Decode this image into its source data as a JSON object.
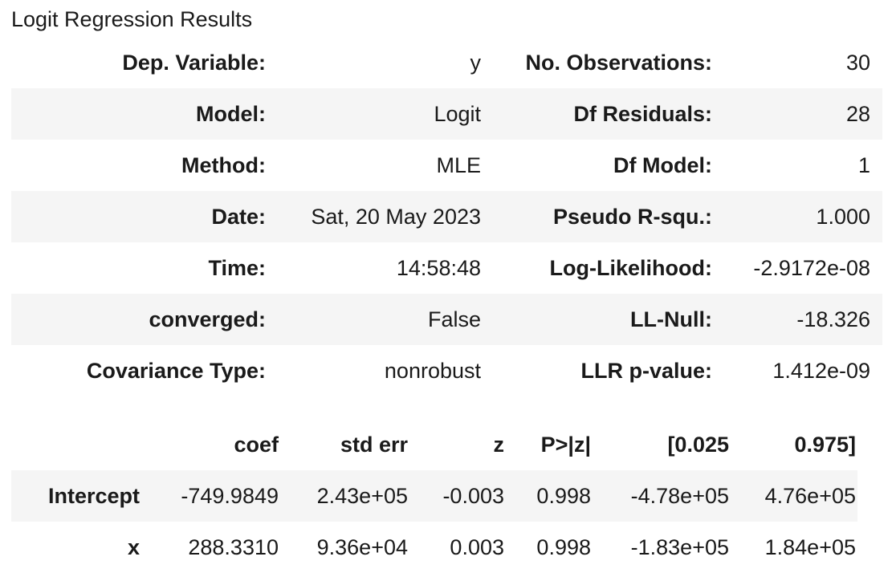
{
  "caption": "Logit Regression Results",
  "summary": [
    {
      "k1": "Dep. Variable:",
      "v1": "y",
      "k2": "No. Observations:",
      "v2": "30"
    },
    {
      "k1": "Model:",
      "v1": "Logit",
      "k2": "Df Residuals:",
      "v2": "28"
    },
    {
      "k1": "Method:",
      "v1": "MLE",
      "k2": "Df Model:",
      "v2": "1"
    },
    {
      "k1": "Date:",
      "v1": "Sat, 20 May 2023",
      "k2": "Pseudo R-squ.:",
      "v2": "1.000"
    },
    {
      "k1": "Time:",
      "v1": "14:58:48",
      "k2": "Log-Likelihood:",
      "v2": "-2.9172e-08"
    },
    {
      "k1": "converged:",
      "v1": "False",
      "k2": "LL-Null:",
      "v2": "-18.326"
    },
    {
      "k1": "Covariance Type:",
      "v1": "nonrobust",
      "k2": "LLR p-value:",
      "v2": "1.412e-09"
    }
  ],
  "coef_table": {
    "headers": [
      "",
      "coef",
      "std err",
      "z",
      "P>|z|",
      "[0.025",
      "0.975]"
    ],
    "rows": [
      [
        "Intercept",
        "-749.9849",
        "2.43e+05",
        "-0.003",
        "0.998",
        "-4.78e+05",
        "4.76e+05"
      ],
      [
        "x",
        "288.3310",
        "9.36e+04",
        "0.003",
        "0.998",
        "-1.83e+05",
        "1.84e+05"
      ]
    ]
  }
}
